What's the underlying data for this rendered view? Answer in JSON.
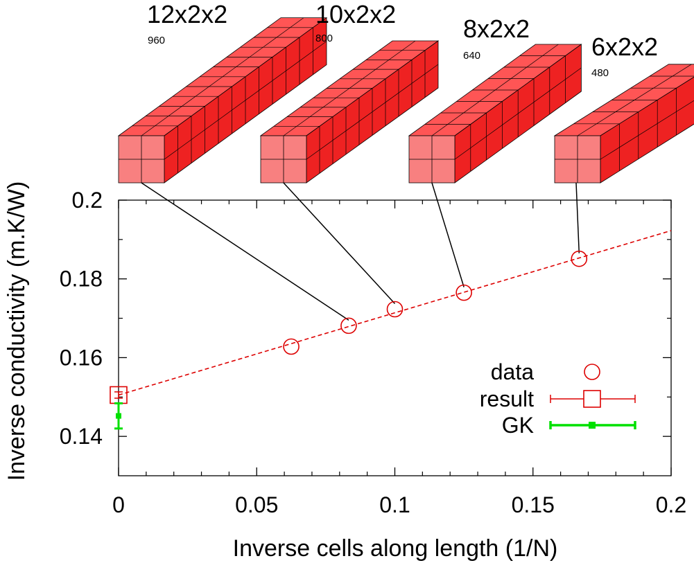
{
  "chart_data": {
    "type": "scatter",
    "xlabel": "Inverse cells along length (1/N)",
    "ylabel": "Inverse conductivity (m.K/W)",
    "xlim": [
      0,
      0.2
    ],
    "ylim": [
      0.13,
      0.2
    ],
    "x_ticks": [
      {
        "value": 0,
        "label": "0"
      },
      {
        "value": 0.05,
        "label": "0.05"
      },
      {
        "value": 0.1,
        "label": "0.1"
      },
      {
        "value": 0.15,
        "label": "0.15"
      },
      {
        "value": 0.2,
        "label": "0.2"
      }
    ],
    "y_ticks": [
      {
        "value": 0.14,
        "label": "0.14"
      },
      {
        "value": 0.16,
        "label": "0.16"
      },
      {
        "value": 0.18,
        "label": "0.18"
      },
      {
        "value": 0.2,
        "label": "0.2"
      }
    ],
    "x_minor_ticks": [
      0.01,
      0.02,
      0.03,
      0.04,
      0.06,
      0.07,
      0.08,
      0.09,
      0.11,
      0.12,
      0.13,
      0.14,
      0.16,
      0.17,
      0.18,
      0.19
    ],
    "y_minor_ticks": [
      0.15,
      0.17,
      0.19
    ],
    "grid": false,
    "legend_position": "bottom-right",
    "series": [
      {
        "name": "data",
        "marker": "circle",
        "color": "#dd0000",
        "x": [
          0.0625,
          0.0833,
          0.1,
          0.125,
          0.1667
        ],
        "y": [
          0.1628,
          0.1681,
          0.1723,
          0.1765,
          0.1851
        ]
      },
      {
        "name": "result",
        "marker": "square",
        "color": "#dd0000",
        "x": [
          0.0
        ],
        "y": [
          0.1505
        ],
        "y_err": [
          0.0008
        ]
      },
      {
        "name": "GK",
        "marker": "filled-square",
        "color": "#00e000",
        "x": [
          0.0
        ],
        "y": [
          0.1452
        ],
        "y_err": [
          0.0032
        ]
      }
    ],
    "fit_line": {
      "intercept": 0.1505,
      "slope": 0.2088,
      "color": "#dd0000",
      "style": "dashed"
    },
    "annotations": [
      {
        "title": "12x2x2",
        "count": "960",
        "x": 0.0833,
        "y": 0.1681
      },
      {
        "title": "10x2x2",
        "count": "800",
        "x": 0.1,
        "y": 0.1723
      },
      {
        "title": "8x2x2",
        "count": "640",
        "x": 0.125,
        "y": 0.1765
      },
      {
        "title": "6x2x2",
        "count": "480",
        "x": 0.1667,
        "y": 0.1851
      }
    ]
  },
  "colors": {
    "box_front": "#f88080",
    "box_top": "#ff5555",
    "box_side": "#ee2222",
    "box_edge": "#000000"
  }
}
